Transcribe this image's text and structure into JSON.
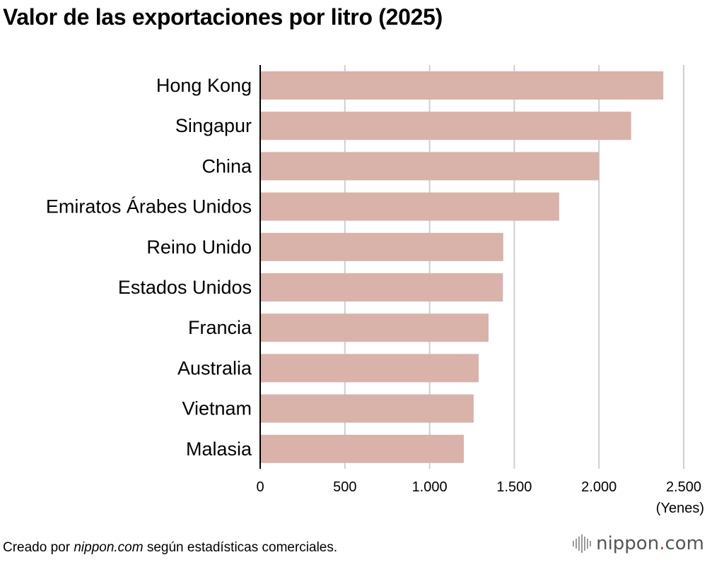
{
  "page": {
    "title": "Valor de las exportaciones por litro (2025)",
    "footer_prefix": "Creado por ",
    "footer_brand": "nippon.com",
    "footer_suffix": " según estadísticas comerciales.",
    "logo_name": "nippon",
    "logo_dot": ".",
    "logo_tld": "com",
    "logo_icon": "sound-wave-icon"
  },
  "colors": {
    "bar": "#d9b2aa",
    "grid": "#cfcfcf",
    "axis": "#000000",
    "logo_dot": "#d0312d"
  },
  "chart_data": {
    "type": "bar",
    "orientation": "horizontal",
    "categories": [
      "Hong Kong",
      "Singapur",
      "China",
      "Emiratos Árabes Unidos",
      "Reino Unido",
      "Estados Unidos",
      "Francia",
      "Australia",
      "Vietnam",
      "Malasia"
    ],
    "values": [
      2380,
      2190,
      2000,
      1765,
      1435,
      1433,
      1348,
      1290,
      1260,
      1202
    ],
    "xlim": [
      0,
      2500
    ],
    "xticks": [
      0,
      500,
      1000,
      1500,
      2000,
      2500
    ],
    "xtick_labels": [
      "0",
      "500",
      "1.000",
      "1.500",
      "2.000",
      "2.500"
    ],
    "unit_label": "(Yenes)",
    "grid": "vertical"
  }
}
